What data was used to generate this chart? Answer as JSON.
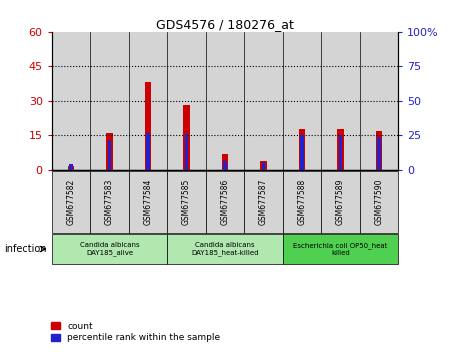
{
  "title": "GDS4576 / 180276_at",
  "samples": [
    "GSM677582",
    "GSM677583",
    "GSM677584",
    "GSM677585",
    "GSM677586",
    "GSM677587",
    "GSM677588",
    "GSM677589",
    "GSM677590"
  ],
  "count_values": [
    1.5,
    16,
    38,
    28,
    7,
    4,
    18,
    18,
    17
  ],
  "percentile_values": [
    4.0,
    22.0,
    27.0,
    26.0,
    6.5,
    5.5,
    25.0,
    25.0,
    24.0
  ],
  "left_ylim": [
    0,
    60
  ],
  "right_ylim": [
    0,
    100
  ],
  "left_yticks": [
    0,
    15,
    30,
    45,
    60
  ],
  "right_yticks": [
    0,
    25,
    50,
    75,
    100
  ],
  "left_yticklabels": [
    "0",
    "15",
    "30",
    "45",
    "60"
  ],
  "right_yticklabels": [
    "0",
    "25",
    "50",
    "75",
    "100%"
  ],
  "count_color": "#cc0000",
  "percentile_color": "#2222cc",
  "bar_bg_color": "#d4d4d4",
  "group_colors": [
    "#b0e8b0",
    "#b0e8b0",
    "#50d050"
  ],
  "groups": [
    {
      "label": "Candida albicans\nDAY185_alive",
      "start": 0,
      "end": 3
    },
    {
      "label": "Candida albicans\nDAY185_heat-killed",
      "start": 3,
      "end": 6
    },
    {
      "label": "Escherichia coli OP50_heat\nkilled",
      "start": 6,
      "end": 9
    }
  ],
  "infection_label": "infection",
  "legend_count": "count",
  "legend_percentile": "percentile rank within the sample",
  "tick_color_left": "#cc0000",
  "tick_color_right": "#2222cc",
  "red_bar_width": 0.18,
  "blue_bar_width": 0.1,
  "fig_bg": "#ffffff"
}
